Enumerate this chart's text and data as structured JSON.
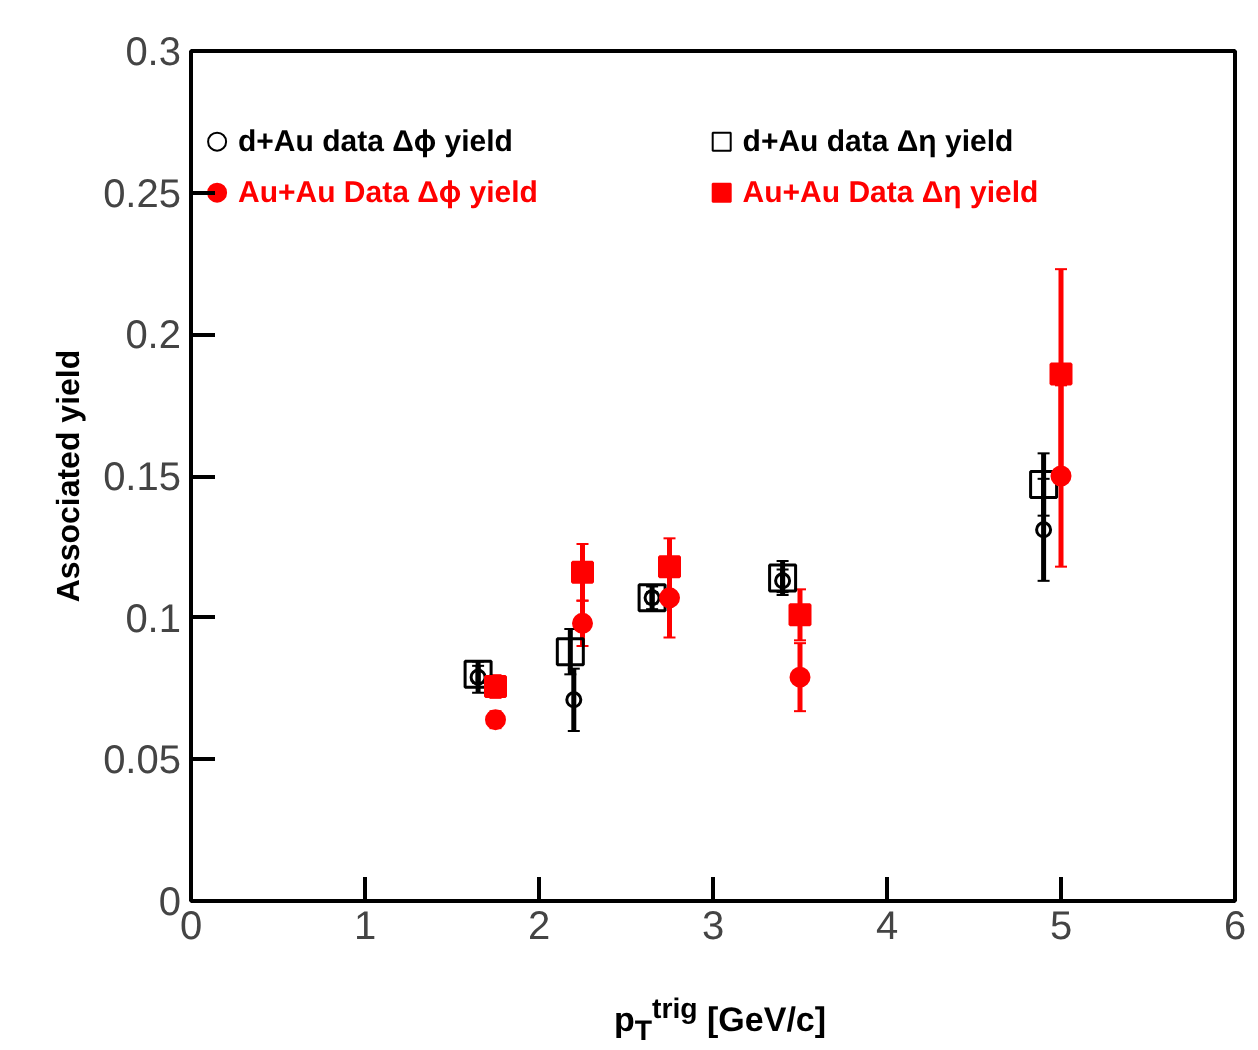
{
  "chart_data": {
    "type": "scatter",
    "xlabel": "p$_{T}$$^{trig}$ [GeV/c]",
    "ylabel": "Associated yield",
    "xlim": [
      0,
      6
    ],
    "ylim": [
      0,
      0.3
    ],
    "xticks": [
      0,
      1,
      2,
      3,
      4,
      5,
      6
    ],
    "yticks": [
      0,
      0.05,
      0.1,
      0.15,
      0.2,
      0.25,
      0.3
    ],
    "grid": false,
    "legend": "top",
    "series": [
      {
        "name": "d+Au data Δϕ yield",
        "color": "#000000",
        "marker": "circle",
        "x": [
          1.65,
          2.2,
          2.65,
          3.4,
          4.9
        ],
        "values": [
          0.079,
          0.071,
          0.107,
          0.113,
          0.131
        ],
        "errors": [
          0.0055,
          0.011,
          0.004,
          0.004,
          0.018
        ]
      },
      {
        "name": "d+Au data Δη yield",
        "color": "#000000",
        "marker": "square",
        "x": [
          1.65,
          2.18,
          2.65,
          3.4,
          4.9
        ],
        "values": [
          0.08,
          0.088,
          0.107,
          0.114,
          0.147
        ],
        "errors": [
          0.003,
          0.008,
          0.002,
          0.006,
          0.011
        ]
      },
      {
        "name": "Au+Au Data Δϕ yield",
        "color": "#ff0000",
        "marker": "circle",
        "x": [
          1.75,
          2.25,
          2.75,
          3.5,
          5.0
        ],
        "values": [
          0.064,
          0.098,
          0.107,
          0.079,
          0.15
        ],
        "errors": [
          0.003,
          0.008,
          0.014,
          0.012,
          0.032
        ]
      },
      {
        "name": "Au+Au Data Δη yield",
        "color": "#ff0000",
        "marker": "square",
        "x": [
          1.75,
          2.25,
          2.75,
          3.5,
          5.0
        ],
        "values": [
          0.0757,
          0.116,
          0.118,
          0.101,
          0.186
        ],
        "errors": [
          0.004,
          0.01,
          0.01,
          0.009,
          0.037
        ]
      }
    ]
  }
}
